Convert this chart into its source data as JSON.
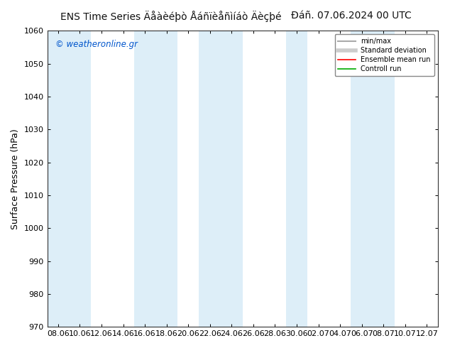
{
  "title_main": "ENS Time Series Äåàèéþò Åáñïèåñìíáò Äèçþé",
  "title_date": "Đáñ. 07.06.2024 00 UTC",
  "ylabel": "Surface Pressure (hPa)",
  "ylim": [
    970,
    1060
  ],
  "yticks": [
    970,
    980,
    990,
    1000,
    1010,
    1020,
    1030,
    1040,
    1050,
    1060
  ],
  "xtick_labels": [
    "08.06",
    "10.06",
    "12.06",
    "14.06",
    "16.06",
    "18.06",
    "20.06",
    "22.06",
    "24.06",
    "26.06",
    "28.06",
    "30.06",
    "02.07",
    "04.07",
    "06.07",
    "08.07",
    "10.07",
    "12.07"
  ],
  "watermark": "© weatheronline.gr",
  "legend_entries": [
    "min/max",
    "Standard deviation",
    "Ensemble mean run",
    "Controll run"
  ],
  "band_color": "#ddeef8",
  "bg_color": "#ffffff",
  "plot_bg_color": "#ffffff",
  "title_fontsize": 10,
  "axis_label_fontsize": 9,
  "tick_fontsize": 8,
  "watermark_color": "#0055cc"
}
